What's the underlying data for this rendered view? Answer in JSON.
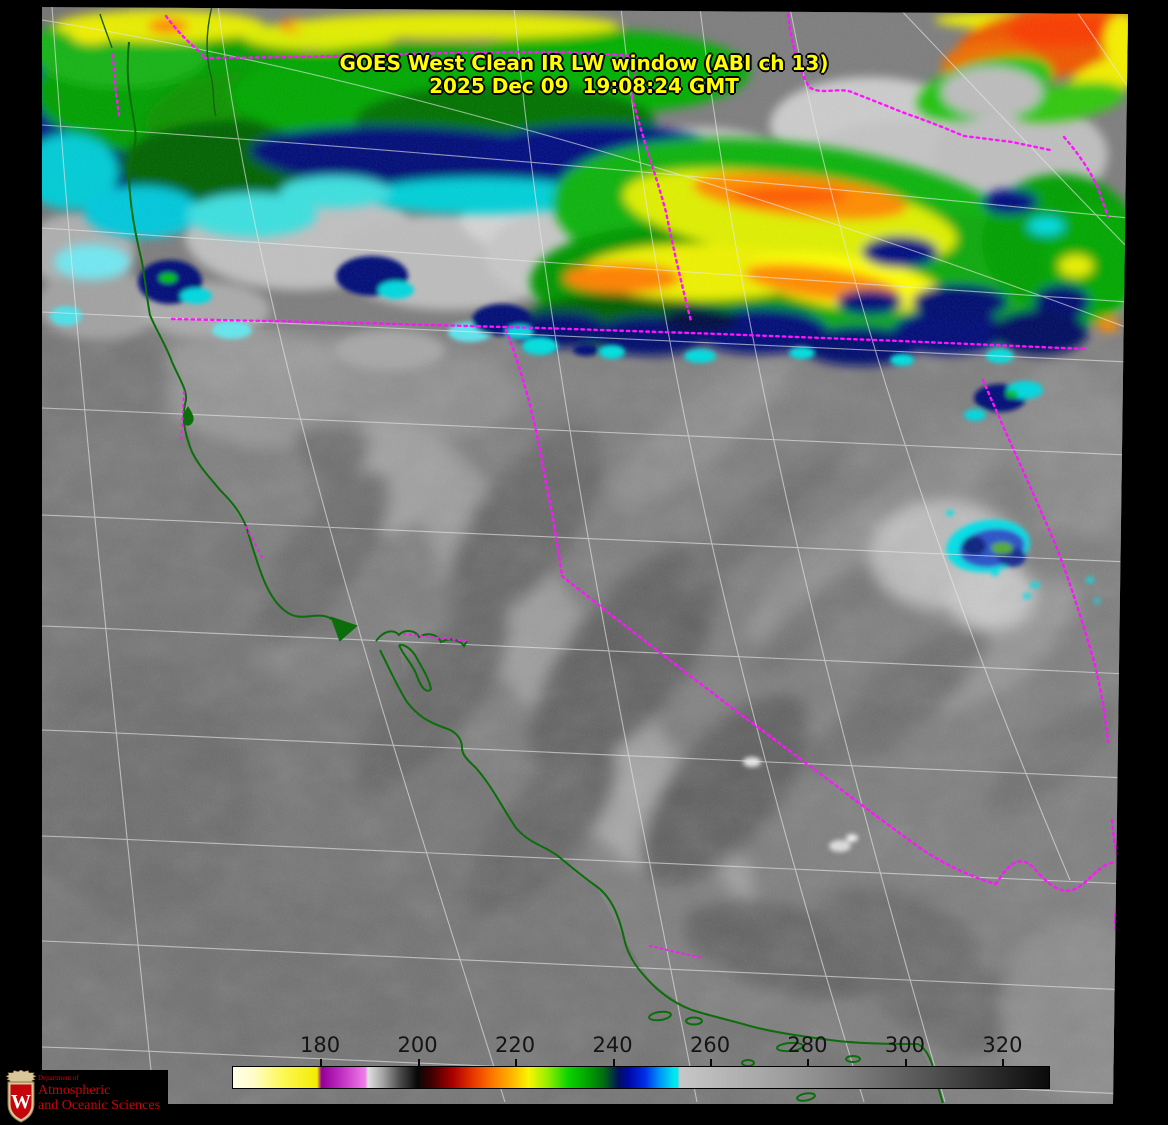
{
  "header": {
    "title_line1": "GOES West Clean IR LW window (ABI ch 13)",
    "title_line2": "2025 Dec 09  19:08:24 GMT",
    "title_color": "#ffff00"
  },
  "colorbar": {
    "ticks": [
      {
        "label": "180",
        "pct": 10.76
      },
      {
        "label": "200",
        "pct": 22.68
      },
      {
        "label": "220",
        "pct": 34.6
      },
      {
        "label": "240",
        "pct": 46.52
      },
      {
        "label": "260",
        "pct": 58.44
      },
      {
        "label": "280",
        "pct": 70.35
      },
      {
        "label": "300",
        "pct": 82.27
      },
      {
        "label": "320",
        "pct": 94.19
      }
    ],
    "label_color": "#141414",
    "gradient_stops": [
      [
        "0",
        "#fffee8"
      ],
      [
        "2.5",
        "#fffccb"
      ],
      [
        "6",
        "#fcf858"
      ],
      [
        "10.3",
        "#f4ec00"
      ],
      [
        "10.85",
        "#920099"
      ],
      [
        "13.3",
        "#c22fc2"
      ],
      [
        "16.2",
        "#ee7de8"
      ],
      [
        "16.55",
        "#e0e0e0"
      ],
      [
        "18.3",
        "#a6a6a6"
      ],
      [
        "20.5",
        "#4a4a4a"
      ],
      [
        "22.6",
        "#070707"
      ],
      [
        "24.3",
        "#3f0000"
      ],
      [
        "27",
        "#ad0000"
      ],
      [
        "29.5",
        "#e93800"
      ],
      [
        "32",
        "#fd7e00"
      ],
      [
        "34.6",
        "#ffc000"
      ],
      [
        "36.2",
        "#fbf500"
      ],
      [
        "38.5",
        "#97ef00"
      ],
      [
        "41",
        "#0ed400"
      ],
      [
        "43.5",
        "#00a300"
      ],
      [
        "45.5",
        "#006a12"
      ],
      [
        "46.6",
        "#003040"
      ],
      [
        "47.3",
        "#001060"
      ],
      [
        "48.5",
        "#0008a8"
      ],
      [
        "50.5",
        "#002ee8"
      ],
      [
        "52.3",
        "#0096f8"
      ],
      [
        "54.1",
        "#00e8ee"
      ],
      [
        "54.45",
        "#00e8ee"
      ],
      [
        "54.75",
        "#c7c7c7"
      ],
      [
        "65",
        "#a7a7a7"
      ],
      [
        "75",
        "#818181"
      ],
      [
        "85",
        "#555555"
      ],
      [
        "93",
        "#2c2c2c"
      ],
      [
        "100",
        "#0a0a0a"
      ]
    ]
  },
  "logo": {
    "dept": "Department of",
    "line1": "Atmospheric",
    "line2": "and Oceanic Sciences",
    "text_color": "#c5050c",
    "crest_letter": "W"
  },
  "map_overlays": {
    "border_color": "#ff14ff",
    "coastline_color": "#0b6e0b",
    "graticule_color": "#e8e8e8",
    "features": [
      "latitude-longitude graticule",
      "Pacific coastline",
      "state borders",
      "San Francisco Bay",
      "Channel Islands"
    ]
  }
}
